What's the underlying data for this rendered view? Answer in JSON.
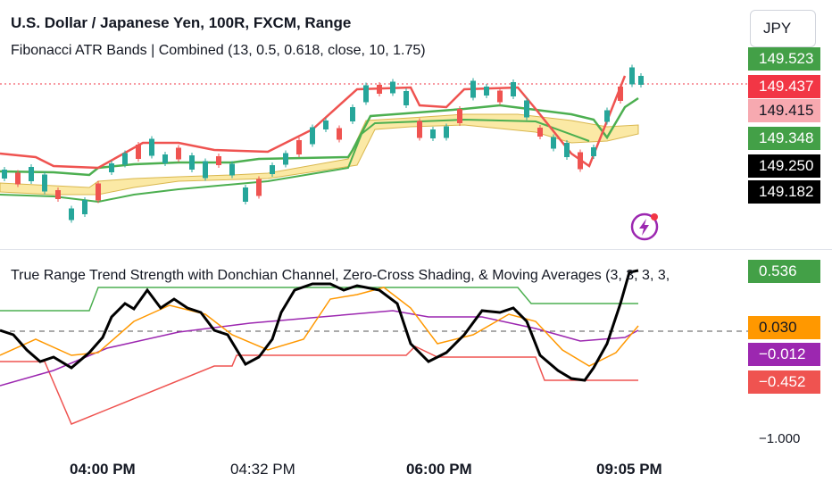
{
  "header": {
    "title": "U.S. Dollar / Japanese Yen, 100R, FXCM, Range",
    "indicator1": "Fibonacci ATR Bands | Combined (13, 0.5, 0.618, close, 10, 1.75)",
    "currency": "JPY"
  },
  "price_scale": {
    "badges": [
      {
        "label": "149.523",
        "color": "#43a047",
        "text_color": "#ffffff"
      },
      {
        "label": "149.437",
        "color": "#f23645",
        "text_color": "#ffffff"
      },
      {
        "label": "149.415",
        "color": "#f7a9b0",
        "text_color": "#131722"
      },
      {
        "label": "149.348",
        "color": "#43a047",
        "text_color": "#ffffff"
      },
      {
        "label": "149.250",
        "color": "#000000",
        "text_color": "#ffffff"
      },
      {
        "label": "149.182",
        "color": "#000000",
        "text_color": "#ffffff"
      }
    ]
  },
  "indicator2": {
    "title": "True Range Trend Strength with Donchian Channel, Zero-Cross Shading, & Moving Averages (3, 3, 3, 3,",
    "badges": [
      {
        "label": "0.536",
        "color": "#43a047",
        "text_color": "#ffffff"
      },
      {
        "label": "0.030",
        "color": "#ff9800",
        "text_color": "#131722"
      },
      {
        "label": "−0.012",
        "color": "#9c27b0",
        "text_color": "#ffffff"
      },
      {
        "label": "−0.452",
        "color": "#ef5350",
        "text_color": "#ffffff"
      }
    ],
    "tick_label": "−1.000"
  },
  "time_axis": {
    "labels": [
      "04:00 PM",
      "04:32 PM",
      "06:00 PM",
      "09:05 PM"
    ]
  },
  "icons": {
    "alert": "lightning-bolt-icon"
  }
}
